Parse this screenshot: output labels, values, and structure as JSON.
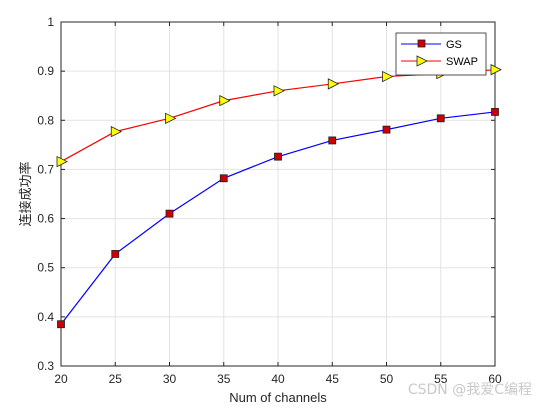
{
  "chart_data": {
    "type": "line",
    "xlabel": "Num of channels",
    "ylabel": "连接成功率",
    "x": [
      20,
      25,
      30,
      35,
      40,
      45,
      50,
      55,
      60
    ],
    "xlim": [
      20,
      60
    ],
    "ylim": [
      0.3,
      1.0
    ],
    "xticks": [
      20,
      25,
      30,
      35,
      40,
      45,
      50,
      55,
      60
    ],
    "yticks": [
      0.3,
      0.4,
      0.5,
      0.6,
      0.7,
      0.8,
      0.9,
      1.0
    ],
    "xtick_labels": [
      "20",
      "25",
      "30",
      "35",
      "40",
      "45",
      "50",
      "55",
      "60"
    ],
    "ytick_labels": [
      "0.3",
      "0.4",
      "0.5",
      "0.6",
      "0.7",
      "0.8",
      "0.9",
      "1"
    ],
    "grid": true,
    "legend_position": "top-right",
    "series": [
      {
        "name": "GS",
        "color": "#0000ff",
        "marker": "square",
        "marker_color": "#cc0000",
        "values": [
          0.385,
          0.528,
          0.61,
          0.682,
          0.726,
          0.759,
          0.781,
          0.804,
          0.817
        ]
      },
      {
        "name": "SWAP",
        "color": "#ff0000",
        "marker": "triangle-right",
        "marker_color": "#ffff00",
        "values": [
          0.716,
          0.777,
          0.804,
          0.84,
          0.86,
          0.874,
          0.889,
          0.895,
          0.903
        ]
      }
    ]
  },
  "watermark": "CSDN @我爱C编程"
}
